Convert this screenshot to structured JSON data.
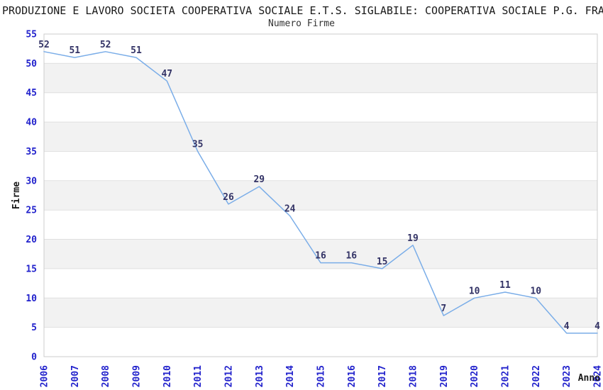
{
  "chart_data": {
    "type": "line",
    "title": "PRODUZIONE E LAVORO SOCIETA COOPERATIVA SOCIALE E.T.S. SIGLABILE: COOPERATIVA SOCIALE P.G. FRA",
    "subtitle": "Numero Firme",
    "xlabel": "Anno",
    "ylabel": "Firme",
    "x": [
      "2006",
      "2007",
      "2008",
      "2009",
      "2010",
      "2011",
      "2012",
      "2013",
      "2014",
      "2015",
      "2016",
      "2017",
      "2018",
      "2019",
      "2020",
      "2021",
      "2022",
      "2023",
      "2024"
    ],
    "series": [
      {
        "name": "Numero Firme",
        "values": [
          52,
          51,
          52,
          51,
          47,
          35,
          26,
          29,
          24,
          16,
          16,
          15,
          19,
          7,
          10,
          11,
          10,
          4,
          4
        ]
      }
    ],
    "ylim": [
      0,
      55
    ],
    "ytick_step": 5,
    "grid": "horizontal",
    "legend": "none",
    "x_tick_rotation": 90,
    "colors": {
      "line": "#7aade8",
      "tick_labels": "#2222cc",
      "point_labels": "#333366",
      "band": "#f2f2f2",
      "gridline": "#e0e0e0",
      "border": "#cccccc",
      "title": "#1a1a1a",
      "axis_labels": "#1a1a1a"
    }
  }
}
